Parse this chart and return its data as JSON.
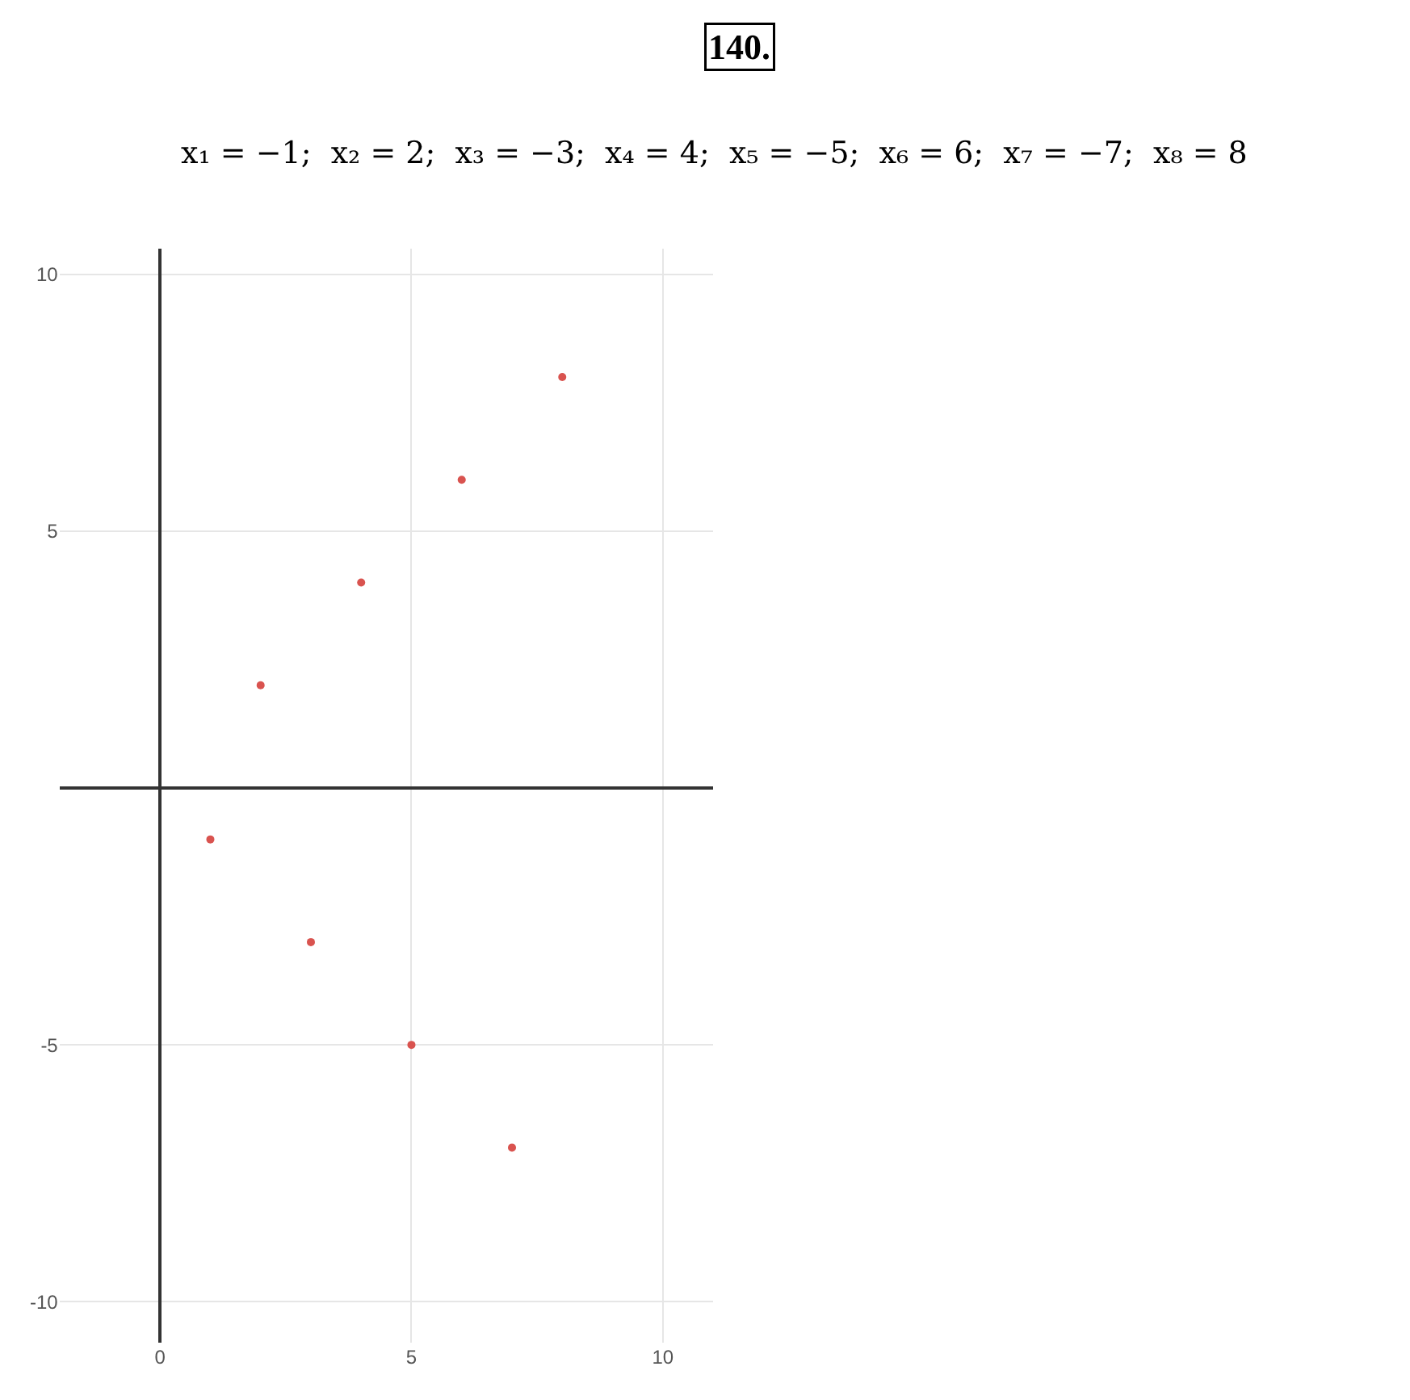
{
  "chart_data": {
    "type": "scatter",
    "title": "140.",
    "subtitle": "x₁ = −1;  x₂ = 2;  x₃ = −3;  x₄ = 4;  x₅ = −5;  x₆ = 6;  x₇ = −7;  x₈ = 8",
    "x": [
      1,
      2,
      3,
      4,
      5,
      6,
      7,
      8
    ],
    "series": [
      {
        "color": "#d9534f",
        "values": [
          -1,
          2,
          -3,
          4,
          -5,
          6,
          -7,
          8
        ]
      }
    ],
    "xlim": [
      -2,
      11
    ],
    "ylim": [
      -10.8,
      10.5
    ],
    "xticks": [
      0,
      5,
      10
    ],
    "yticks": [
      -10,
      -5,
      5,
      10
    ],
    "grid": true,
    "marker": "circle"
  }
}
